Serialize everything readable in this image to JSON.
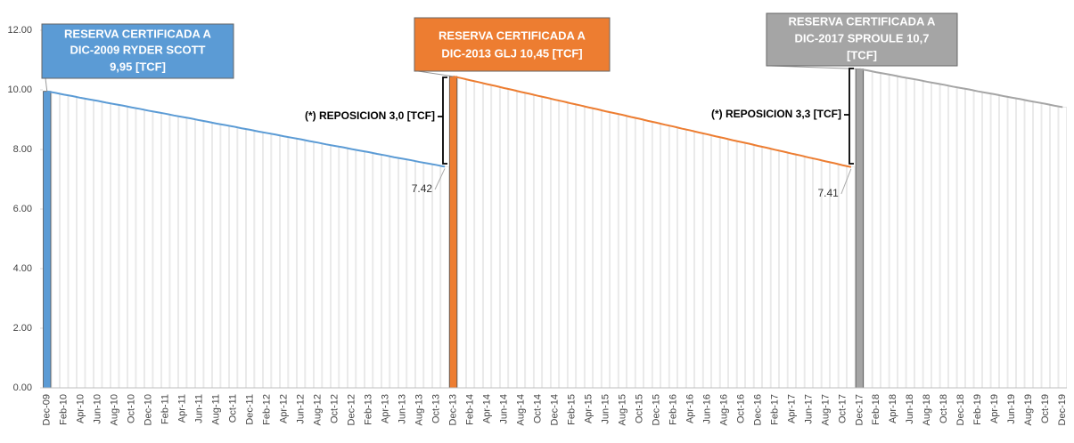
{
  "chart_data": {
    "type": "bar",
    "categories": [
      "Dec-09",
      null,
      "Feb-10",
      null,
      "Apr-10",
      null,
      "Jun-10",
      null,
      "Aug-10",
      null,
      "Oct-10",
      null,
      "Dec-10",
      null,
      "Feb-11",
      null,
      "Apr-11",
      null,
      "Jun-11",
      null,
      "Aug-11",
      null,
      "Oct-11",
      null,
      "Dec-11",
      null,
      "Feb-12",
      null,
      "Apr-12",
      null,
      "Jun-12",
      null,
      "Aug-12",
      null,
      "Oct-12",
      null,
      "Dec-12",
      null,
      "Feb-13",
      null,
      "Apr-13",
      null,
      "Jun-13",
      null,
      "Aug-13",
      null,
      "Oct-13",
      null,
      "Dec-13",
      null,
      "Feb-14",
      null,
      "Apr-14",
      null,
      "Jun-14",
      null,
      "Aug-14",
      null,
      "Oct-14",
      null,
      "Dec-14",
      null,
      "Feb-15",
      null,
      "Apr-15",
      null,
      "Jun-15",
      null,
      "Aug-15",
      null,
      "Oct-15",
      null,
      "Dec-15",
      null,
      "Feb-16",
      null,
      "Apr-16",
      null,
      "Jun-16",
      null,
      "Aug-16",
      null,
      "Oct-16",
      null,
      "Dec-16",
      null,
      "Feb-17",
      null,
      "Apr-17",
      null,
      "Jun-17",
      null,
      "Aug-17",
      null,
      "Oct-17",
      null,
      "Dec-17",
      null,
      "Feb-18",
      null,
      "Apr-18",
      null,
      "Jun-18",
      null,
      "Aug-18",
      null,
      "Oct-18",
      null,
      "Dec-18",
      null,
      "Feb-19",
      null,
      "Apr-19",
      null,
      "Jun-19",
      null,
      "Aug-19",
      null,
      "Oct-19",
      null,
      "Dec-19"
    ],
    "series": [
      {
        "color": "#5b9bd5",
        "label": [
          "RESERVA CERTIFICADA A",
          "DIC-2009 RYDER SCOTT",
          "9,95 [TCF]"
        ],
        "values": [
          9.95,
          9.9,
          9.84,
          9.79,
          9.73,
          9.68,
          9.63,
          9.57,
          9.52,
          9.47,
          9.41,
          9.36,
          9.3,
          9.25,
          9.2,
          9.14,
          9.09,
          9.04,
          8.98,
          8.93,
          8.87,
          8.82,
          8.77,
          8.71,
          8.66,
          8.6,
          8.55,
          8.5,
          8.44,
          8.39,
          8.34,
          8.28,
          8.23,
          8.17,
          8.12,
          8.07,
          8.01,
          7.96,
          7.91,
          7.85,
          7.8,
          7.74,
          7.69,
          7.64,
          7.58,
          7.53,
          7.48,
          7.42,
          null,
          null,
          null,
          null,
          null,
          null,
          null,
          null,
          null,
          null,
          null,
          null,
          null,
          null,
          null,
          null,
          null,
          null,
          null,
          null,
          null,
          null,
          null,
          null,
          null,
          null,
          null,
          null,
          null,
          null,
          null,
          null,
          null,
          null,
          null,
          null,
          null,
          null,
          null,
          null,
          null,
          null,
          null,
          null,
          null,
          null,
          null,
          null,
          null,
          null,
          null,
          null,
          null,
          null,
          null,
          null,
          null,
          null,
          null,
          null,
          null,
          null,
          null,
          null,
          null,
          null,
          null,
          null,
          null,
          null,
          null,
          null,
          null
        ]
      },
      {
        "color": "#ed7d31",
        "label": [
          "RESERVA CERTIFICADA A",
          "DIC-2013 GLJ 10,45 [TCF]"
        ],
        "values": [
          null,
          null,
          null,
          null,
          null,
          null,
          null,
          null,
          null,
          null,
          null,
          null,
          null,
          null,
          null,
          null,
          null,
          null,
          null,
          null,
          null,
          null,
          null,
          null,
          null,
          null,
          null,
          null,
          null,
          null,
          null,
          null,
          null,
          null,
          null,
          null,
          null,
          null,
          null,
          null,
          null,
          null,
          null,
          null,
          null,
          null,
          null,
          null,
          10.45,
          10.39,
          10.32,
          10.26,
          10.19,
          10.13,
          10.06,
          10.0,
          9.93,
          9.87,
          9.8,
          9.74,
          9.67,
          9.61,
          9.54,
          9.48,
          9.41,
          9.35,
          9.28,
          9.22,
          9.16,
          9.09,
          9.03,
          8.96,
          8.9,
          8.83,
          8.77,
          8.7,
          8.64,
          8.57,
          8.51,
          8.44,
          8.38,
          8.31,
          8.25,
          8.19,
          8.12,
          8.06,
          7.99,
          7.93,
          7.86,
          7.8,
          7.73,
          7.67,
          7.6,
          7.54,
          7.47,
          7.41,
          null,
          null,
          null,
          null,
          null,
          null,
          null,
          null,
          null,
          null,
          null,
          null,
          null,
          null,
          null,
          null,
          null,
          null,
          null,
          null,
          null,
          null,
          null,
          null,
          null
        ]
      },
      {
        "color": "#a5a5a5",
        "label": [
          "RESERVA CERTIFICADA A",
          "DIC-2017 SPROULE 10,7",
          "[TCF]"
        ],
        "values": [
          null,
          null,
          null,
          null,
          null,
          null,
          null,
          null,
          null,
          null,
          null,
          null,
          null,
          null,
          null,
          null,
          null,
          null,
          null,
          null,
          null,
          null,
          null,
          null,
          null,
          null,
          null,
          null,
          null,
          null,
          null,
          null,
          null,
          null,
          null,
          null,
          null,
          null,
          null,
          null,
          null,
          null,
          null,
          null,
          null,
          null,
          null,
          null,
          null,
          null,
          null,
          null,
          null,
          null,
          null,
          null,
          null,
          null,
          null,
          null,
          null,
          null,
          null,
          null,
          null,
          null,
          null,
          null,
          null,
          null,
          null,
          null,
          null,
          null,
          null,
          null,
          null,
          null,
          null,
          null,
          null,
          null,
          null,
          null,
          null,
          null,
          null,
          null,
          null,
          null,
          null,
          null,
          null,
          null,
          null,
          null,
          10.7,
          10.65,
          10.59,
          10.54,
          10.49,
          10.43,
          10.38,
          10.33,
          10.27,
          10.22,
          10.17,
          10.11,
          10.06,
          10.01,
          9.95,
          9.9,
          9.85,
          9.79,
          9.74,
          9.69,
          9.63,
          9.58,
          9.53,
          9.47,
          9.42
        ]
      }
    ],
    "annotations": [
      "(*) REPOSICION 3,0 [TCF]",
      "(*) REPOSICION 3,3 [TCF]"
    ],
    "ylim": [
      0,
      12
    ],
    "yticks": [
      {
        "value": 0,
        "label": "0.00"
      },
      {
        "value": 2,
        "label": "2.00"
      },
      {
        "value": 4,
        "label": "4.00"
      },
      {
        "value": 6,
        "label": "6.00"
      },
      {
        "value": 8,
        "label": "8.00"
      },
      {
        "value": 10,
        "label": "10.00"
      },
      {
        "value": 12,
        "label": "12.00"
      }
    ],
    "grid": false
  }
}
